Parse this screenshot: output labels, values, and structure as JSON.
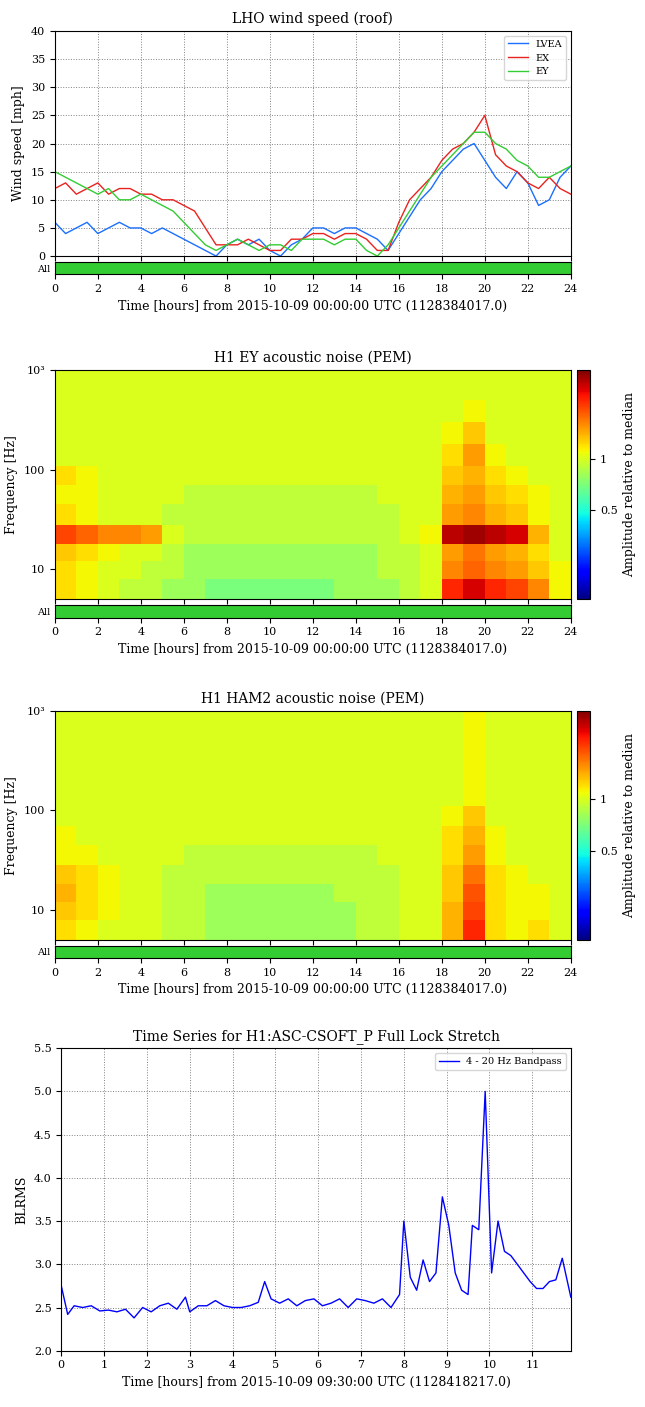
{
  "chart_data": [
    {
      "type": "line",
      "title": "LHO wind speed (roof)",
      "x_label": "Time [hours] from 2015-10-09 00:00:00 UTC (1128384017.0)",
      "y_label": "Wind speed [mph]",
      "xlim": [
        0,
        24
      ],
      "xticks": [
        0,
        2,
        4,
        6,
        8,
        10,
        12,
        14,
        16,
        18,
        20,
        22,
        24
      ],
      "ylim": [
        0,
        40
      ],
      "yticks": [
        0,
        5,
        10,
        15,
        20,
        25,
        30,
        35,
        40
      ],
      "grid": true,
      "legend": "upper right",
      "x": [
        0,
        0.5,
        1,
        1.5,
        2,
        2.5,
        3,
        3.5,
        4,
        4.5,
        5,
        5.5,
        6,
        6.5,
        7,
        7.5,
        8,
        8.5,
        9,
        9.5,
        10,
        10.5,
        11,
        11.5,
        12,
        12.5,
        13,
        13.5,
        14,
        14.5,
        15,
        15.5,
        16,
        16.5,
        17,
        17.5,
        18,
        18.5,
        19,
        19.5,
        20,
        20.5,
        21,
        21.5,
        22,
        22.5,
        23,
        23.5,
        24
      ],
      "series": [
        {
          "name": "LVEA",
          "color": "#1a6fff",
          "values": [
            6,
            4,
            5,
            6,
            4,
            5,
            6,
            5,
            5,
            4,
            5,
            4,
            3,
            2,
            1,
            0,
            2,
            3,
            2,
            3,
            1,
            0,
            2,
            3,
            5,
            5,
            4,
            5,
            5,
            4,
            3,
            1,
            4,
            7,
            10,
            12,
            15,
            17,
            19,
            20,
            17,
            14,
            12,
            15,
            13,
            9,
            10,
            14,
            16
          ]
        },
        {
          "name": "EX",
          "color": "#e8231f",
          "values": [
            12,
            13,
            11,
            12,
            13,
            11,
            12,
            12,
            11,
            11,
            10,
            10,
            9,
            8,
            5,
            2,
            2,
            2,
            3,
            2,
            1,
            1,
            3,
            3,
            4,
            4,
            3,
            4,
            4,
            3,
            1,
            1,
            6,
            10,
            12,
            14,
            17,
            19,
            20,
            22,
            25,
            18,
            16,
            15,
            13,
            12,
            14,
            12,
            11
          ]
        },
        {
          "name": "EY",
          "color": "#33cc33",
          "values": [
            15,
            14,
            13,
            12,
            11,
            12,
            10,
            10,
            11,
            10,
            9,
            8,
            6,
            4,
            2,
            1,
            2,
            3,
            2,
            1,
            2,
            2,
            1,
            3,
            3,
            3,
            2,
            3,
            3,
            1,
            0,
            2,
            5,
            8,
            11,
            14,
            16,
            18,
            20,
            22,
            22,
            20,
            19,
            17,
            16,
            14,
            14,
            15,
            16
          ]
        }
      ],
      "segments": [
        {
          "name": "All",
          "color": "#33cc33",
          "start": 0,
          "end": 24
        }
      ]
    },
    {
      "type": "heatmap",
      "title": "H1 EY acoustic noise (PEM)",
      "x_label": "Time [hours] from 2015-10-09 00:00:00 UTC (1128384017.0)",
      "y_label": "Frequency [Hz]",
      "log": "y",
      "grid": false,
      "xlim": [
        0,
        24
      ],
      "xticks": [
        0,
        2,
        4,
        6,
        8,
        10,
        12,
        14,
        16,
        18,
        20,
        22,
        24
      ],
      "ylim": [
        5,
        1000
      ],
      "yticks": [
        10,
        100,
        {
          "value": 1000,
          "label": "10³"
        }
      ],
      "x_edges": [
        0,
        1,
        2,
        3,
        4,
        5,
        6,
        7,
        8,
        9,
        10,
        11,
        12,
        13,
        14,
        15,
        16,
        17,
        18,
        19,
        20,
        21,
        22,
        23,
        24
      ],
      "y_edges": [
        5,
        8,
        12,
        18,
        28,
        45,
        70,
        110,
        180,
        300,
        500,
        1000
      ],
      "cells": [
        [
          1.2,
          1.1,
          1.0,
          0.9,
          0.9,
          0.8,
          0.8,
          0.7,
          0.7,
          0.7,
          0.7,
          0.7,
          0.7,
          0.8,
          0.8,
          0.8,
          0.9,
          1.0,
          2.2,
          2.6,
          2.2,
          2.0,
          1.6,
          1.1
        ],
        [
          1.2,
          1.1,
          1.0,
          1.0,
          0.9,
          0.9,
          0.8,
          0.8,
          0.8,
          0.8,
          0.8,
          0.8,
          0.8,
          0.8,
          0.8,
          0.9,
          0.9,
          1.0,
          1.6,
          1.8,
          1.6,
          1.5,
          1.3,
          1.1
        ],
        [
          1.3,
          1.2,
          1.1,
          1.0,
          1.0,
          0.9,
          0.8,
          0.8,
          0.8,
          0.8,
          0.8,
          0.8,
          0.8,
          0.8,
          0.8,
          0.9,
          0.9,
          1.0,
          1.5,
          1.7,
          1.5,
          1.4,
          1.2,
          1.0
        ],
        [
          2.0,
          1.8,
          1.6,
          1.6,
          1.5,
          1.0,
          0.9,
          0.9,
          0.9,
          0.9,
          0.9,
          0.9,
          0.9,
          0.9,
          0.9,
          0.9,
          1.0,
          1.1,
          2.8,
          3.0,
          2.8,
          2.6,
          1.4,
          1.0
        ],
        [
          1.2,
          1.1,
          1.0,
          1.0,
          1.0,
          0.9,
          0.9,
          0.9,
          0.9,
          0.9,
          0.9,
          0.9,
          0.9,
          0.9,
          0.9,
          0.9,
          1.0,
          1.0,
          1.5,
          1.6,
          1.4,
          1.3,
          1.1,
          1.0
        ],
        [
          1.1,
          1.1,
          1.0,
          1.0,
          1.0,
          1.0,
          0.9,
          0.9,
          0.9,
          0.9,
          0.9,
          0.9,
          0.9,
          0.9,
          0.9,
          1.0,
          1.0,
          1.0,
          1.4,
          1.5,
          1.3,
          1.2,
          1.1,
          1.0
        ],
        [
          1.2,
          1.1,
          1.0,
          1.0,
          1.0,
          1.0,
          1.0,
          1.0,
          1.0,
          1.0,
          1.0,
          1.0,
          1.0,
          1.0,
          1.0,
          1.0,
          1.0,
          1.0,
          1.3,
          1.4,
          1.2,
          1.1,
          1.0,
          1.0
        ],
        [
          1.0,
          1.0,
          1.0,
          1.0,
          1.0,
          1.0,
          1.0,
          1.0,
          1.0,
          1.0,
          1.0,
          1.0,
          1.0,
          1.0,
          1.0,
          1.0,
          1.0,
          1.0,
          1.2,
          1.5,
          1.1,
          1.0,
          1.0,
          1.0
        ],
        [
          1.0,
          1.0,
          1.0,
          1.0,
          1.0,
          1.0,
          1.0,
          1.0,
          1.0,
          1.0,
          1.0,
          1.0,
          1.0,
          1.0,
          1.0,
          1.0,
          1.0,
          1.0,
          1.1,
          1.3,
          1.0,
          1.0,
          1.0,
          1.0
        ],
        [
          1.0,
          1.0,
          1.0,
          1.0,
          1.0,
          1.0,
          1.0,
          1.0,
          1.0,
          1.0,
          1.0,
          1.0,
          1.0,
          1.0,
          1.0,
          1.0,
          1.0,
          1.0,
          1.0,
          1.1,
          1.0,
          1.0,
          1.0,
          1.0
        ],
        [
          1.0,
          1.0,
          1.0,
          1.0,
          1.0,
          1.0,
          1.0,
          1.0,
          1.0,
          1.0,
          1.0,
          1.0,
          1.0,
          1.0,
          1.0,
          1.0,
          1.0,
          1.0,
          1.0,
          1.0,
          1.0,
          1.0,
          1.0,
          1.0
        ]
      ],
      "colorbar": {
        "label": "Amplitude relative to median",
        "range": [
          0.15,
          3.3
        ],
        "ticks": [
          0.5,
          1
        ]
      },
      "segments": [
        {
          "name": "All",
          "color": "#33cc33",
          "start": 0,
          "end": 24
        }
      ]
    },
    {
      "type": "heatmap",
      "title": "H1 HAM2 acoustic noise (PEM)",
      "x_label": "Time [hours] from 2015-10-09 00:00:00 UTC (1128384017.0)",
      "y_label": "Frequency [Hz]",
      "log": "y",
      "grid": false,
      "xlim": [
        0,
        24
      ],
      "xticks": [
        0,
        2,
        4,
        6,
        8,
        10,
        12,
        14,
        16,
        18,
        20,
        22,
        24
      ],
      "ylim": [
        5,
        1000
      ],
      "yticks": [
        10,
        100,
        {
          "value": 1000,
          "label": "10³"
        }
      ],
      "x_edges": [
        0,
        1,
        2,
        3,
        4,
        5,
        6,
        7,
        8,
        9,
        10,
        11,
        12,
        13,
        14,
        15,
        16,
        17,
        18,
        19,
        20,
        21,
        22,
        23,
        24
      ],
      "y_edges": [
        5,
        8,
        12,
        18,
        28,
        45,
        70,
        110,
        180,
        300,
        500,
        1000
      ],
      "cells": [
        [
          1.2,
          1.1,
          1.0,
          1.0,
          1.0,
          0.9,
          0.9,
          0.8,
          0.8,
          0.8,
          0.8,
          0.8,
          0.8,
          0.8,
          0.9,
          0.9,
          1.0,
          1.0,
          1.4,
          2.2,
          1.2,
          1.1,
          1.2,
          1.0
        ],
        [
          1.3,
          1.2,
          1.1,
          1.0,
          1.0,
          0.9,
          0.9,
          0.8,
          0.8,
          0.8,
          0.8,
          0.8,
          0.8,
          0.8,
          0.9,
          0.9,
          1.0,
          1.0,
          1.4,
          2.0,
          1.2,
          1.1,
          1.1,
          1.0
        ],
        [
          1.4,
          1.2,
          1.1,
          1.0,
          1.0,
          0.9,
          0.9,
          0.8,
          0.8,
          0.8,
          0.8,
          0.8,
          0.8,
          0.9,
          0.9,
          0.9,
          1.0,
          1.0,
          1.3,
          1.9,
          1.2,
          1.1,
          1.1,
          1.0
        ],
        [
          1.3,
          1.2,
          1.1,
          1.0,
          1.0,
          0.9,
          0.9,
          0.9,
          0.9,
          0.9,
          0.9,
          0.9,
          0.9,
          0.9,
          0.9,
          0.9,
          1.0,
          1.0,
          1.3,
          1.7,
          1.2,
          1.1,
          1.0,
          1.0
        ],
        [
          1.1,
          1.1,
          1.0,
          1.0,
          1.0,
          1.0,
          0.9,
          0.9,
          0.9,
          0.9,
          0.9,
          0.9,
          0.9,
          0.9,
          0.9,
          1.0,
          1.0,
          1.0,
          1.2,
          1.5,
          1.1,
          1.0,
          1.0,
          1.0
        ],
        [
          1.1,
          1.0,
          1.0,
          1.0,
          1.0,
          1.0,
          1.0,
          1.0,
          1.0,
          1.0,
          1.0,
          1.0,
          1.0,
          1.0,
          1.0,
          1.0,
          1.0,
          1.0,
          1.2,
          1.4,
          1.1,
          1.0,
          1.0,
          1.0
        ],
        [
          1.0,
          1.0,
          1.0,
          1.0,
          1.0,
          1.0,
          1.0,
          1.0,
          1.0,
          1.0,
          1.0,
          1.0,
          1.0,
          1.0,
          1.0,
          1.0,
          1.0,
          1.0,
          1.1,
          1.3,
          1.0,
          1.0,
          1.0,
          1.0
        ],
        [
          1.0,
          1.0,
          1.0,
          1.0,
          1.0,
          1.0,
          1.0,
          1.0,
          1.0,
          1.0,
          1.0,
          1.0,
          1.0,
          1.0,
          1.0,
          1.0,
          1.0,
          1.0,
          1.0,
          1.1,
          1.0,
          1.0,
          1.0,
          1.0
        ],
        [
          1.0,
          1.0,
          1.0,
          1.0,
          1.0,
          1.0,
          1.0,
          1.0,
          1.0,
          1.0,
          1.0,
          1.0,
          1.0,
          1.0,
          1.0,
          1.0,
          1.0,
          1.0,
          1.0,
          1.1,
          1.0,
          1.0,
          1.0,
          1.0
        ],
        [
          1.0,
          1.0,
          1.0,
          1.0,
          1.0,
          1.0,
          1.0,
          1.0,
          1.0,
          1.0,
          1.0,
          1.0,
          1.0,
          1.0,
          1.0,
          1.0,
          1.0,
          1.0,
          1.0,
          1.1,
          1.0,
          1.0,
          1.0,
          1.0
        ],
        [
          1.0,
          1.0,
          1.0,
          1.0,
          1.0,
          1.0,
          1.0,
          1.0,
          1.0,
          1.0,
          1.0,
          1.0,
          1.0,
          1.0,
          1.0,
          1.0,
          1.0,
          1.0,
          1.0,
          1.1,
          1.0,
          1.0,
          1.0,
          1.0
        ]
      ],
      "colorbar": {
        "label": "Amplitude relative to median",
        "range": [
          0.15,
          3.3
        ],
        "ticks": [
          0.5,
          1
        ]
      },
      "segments": [
        {
          "name": "All",
          "color": "#33cc33",
          "start": 0,
          "end": 24
        }
      ]
    },
    {
      "type": "line",
      "title": "Time Series for H1:ASC-CSOFT_P Full Lock Stretch",
      "x_label": "Time [hours] from 2015-10-09 09:30:00 UTC (1128418217.0)",
      "y_label": "BLRMS",
      "xlim": [
        0,
        11.9
      ],
      "xticks": [
        0,
        1,
        2,
        3,
        4,
        5,
        6,
        7,
        8,
        9,
        10,
        11
      ],
      "ylim": [
        2.0,
        5.5
      ],
      "yticks": [
        2.0,
        2.5,
        3.0,
        3.5,
        4.0,
        4.5,
        5.0,
        5.5
      ],
      "grid": true,
      "legend": "upper right",
      "x": [
        0,
        0.15,
        0.3,
        0.5,
        0.7,
        0.9,
        1.1,
        1.3,
        1.5,
        1.7,
        1.9,
        2.1,
        2.3,
        2.5,
        2.7,
        2.9,
        3.0,
        3.2,
        3.4,
        3.6,
        3.8,
        4.0,
        4.2,
        4.4,
        4.6,
        4.75,
        4.9,
        5.1,
        5.3,
        5.5,
        5.7,
        5.9,
        6.1,
        6.3,
        6.5,
        6.7,
        6.9,
        7.1,
        7.3,
        7.5,
        7.7,
        7.9,
        8.0,
        8.15,
        8.3,
        8.45,
        8.6,
        8.75,
        8.9,
        9.05,
        9.2,
        9.35,
        9.5,
        9.6,
        9.75,
        9.9,
        10.05,
        10.2,
        10.35,
        10.5,
        10.65,
        10.8,
        10.95,
        11.1,
        11.25,
        11.4,
        11.55,
        11.7,
        11.9
      ],
      "series": [
        {
          "name": "4 - 20 Hz Bandpass",
          "color": "#0000ff",
          "values": [
            2.75,
            2.42,
            2.52,
            2.5,
            2.52,
            2.46,
            2.47,
            2.45,
            2.48,
            2.38,
            2.5,
            2.45,
            2.52,
            2.55,
            2.48,
            2.62,
            2.45,
            2.52,
            2.52,
            2.58,
            2.52,
            2.5,
            2.5,
            2.52,
            2.56,
            2.8,
            2.6,
            2.55,
            2.6,
            2.52,
            2.58,
            2.6,
            2.52,
            2.55,
            2.6,
            2.5,
            2.6,
            2.58,
            2.55,
            2.6,
            2.5,
            2.65,
            3.5,
            2.85,
            2.7,
            3.05,
            2.8,
            2.9,
            3.78,
            3.45,
            2.9,
            2.7,
            2.65,
            3.45,
            3.4,
            5.0,
            2.9,
            3.5,
            3.15,
            3.1,
            3.0,
            2.9,
            2.8,
            2.72,
            2.72,
            2.8,
            2.82,
            3.07,
            2.62
          ]
        }
      ]
    }
  ]
}
